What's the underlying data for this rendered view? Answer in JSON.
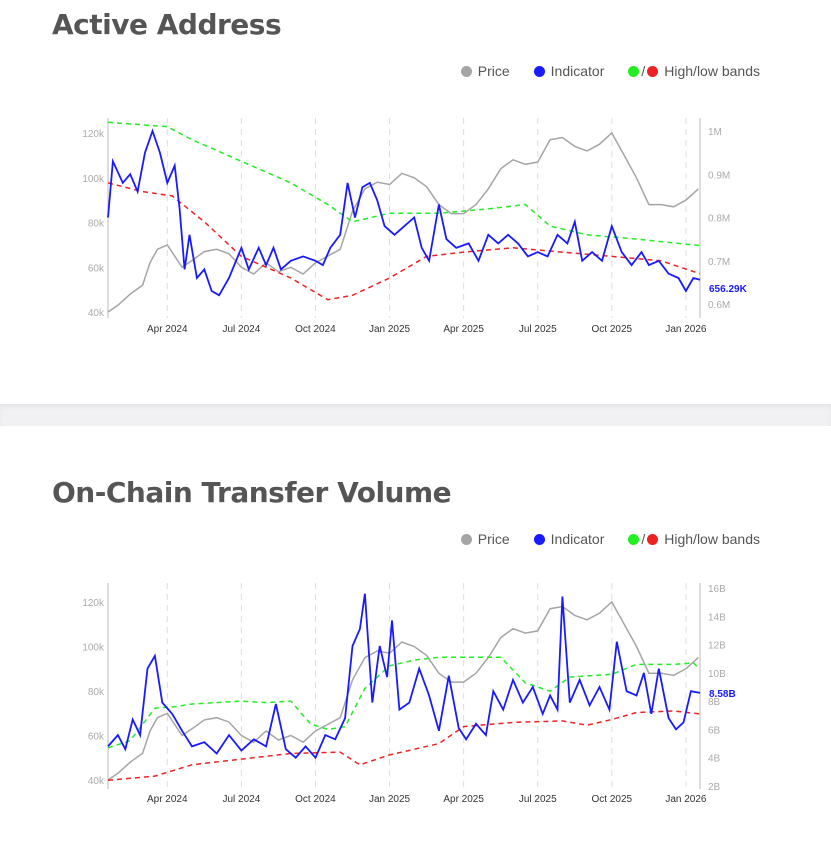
{
  "colors": {
    "price": "#a5a5a5",
    "indicator": "#1a1aff",
    "high": "#22ee22",
    "low": "#ee2222"
  },
  "legend": {
    "price": "Price",
    "indicator": "Indicator",
    "bands": "High/low bands",
    "slash": "/"
  },
  "x_ticks": [
    {
      "m": 3,
      "label": "Apr 2024"
    },
    {
      "m": 6,
      "label": "Jul 2024"
    },
    {
      "m": 9,
      "label": "Oct 2024"
    },
    {
      "m": 12,
      "label": "Jan 2025"
    },
    {
      "m": 15,
      "label": "Apr 2025"
    },
    {
      "m": 18,
      "label": "Jul 2025"
    },
    {
      "m": 21,
      "label": "Oct 2025"
    },
    {
      "m": 24,
      "label": "Jan 2026"
    }
  ],
  "price_series": [
    [
      0.6,
      40
    ],
    [
      1,
      43
    ],
    [
      1.5,
      48
    ],
    [
      2,
      52
    ],
    [
      2.3,
      62
    ],
    [
      2.6,
      68
    ],
    [
      3,
      70
    ],
    [
      3.3,
      65
    ],
    [
      3.6,
      60
    ],
    [
      4,
      63
    ],
    [
      4.5,
      67
    ],
    [
      5,
      68
    ],
    [
      5.5,
      66
    ],
    [
      6,
      60
    ],
    [
      6.5,
      57
    ],
    [
      7,
      62
    ],
    [
      7.5,
      58
    ],
    [
      8,
      60
    ],
    [
      8.5,
      57
    ],
    [
      9,
      62
    ],
    [
      9.5,
      65
    ],
    [
      10,
      68
    ],
    [
      10.5,
      85
    ],
    [
      11,
      95
    ],
    [
      11.5,
      98
    ],
    [
      12,
      97
    ],
    [
      12.5,
      102
    ],
    [
      13,
      100
    ],
    [
      13.5,
      96
    ],
    [
      14,
      88
    ],
    [
      14.5,
      84
    ],
    [
      15,
      84
    ],
    [
      15.5,
      88
    ],
    [
      16,
      95
    ],
    [
      16.5,
      104
    ],
    [
      17,
      108
    ],
    [
      17.5,
      106
    ],
    [
      18,
      107
    ],
    [
      18.5,
      117
    ],
    [
      19,
      118
    ],
    [
      19.5,
      114
    ],
    [
      20,
      112
    ],
    [
      20.5,
      115
    ],
    [
      21,
      120
    ],
    [
      21.5,
      110
    ],
    [
      22,
      100
    ],
    [
      22.5,
      88
    ],
    [
      23,
      88
    ],
    [
      23.5,
      87
    ],
    [
      24,
      90
    ],
    [
      24.5,
      95
    ]
  ],
  "chart_data": [
    {
      "type": "line",
      "title": "Active Address",
      "xlabel": "",
      "ylabel_left": "Price",
      "ylabel_right": "Active Address",
      "x_unit": "months since Jan 2024",
      "xlim": [
        0.6,
        24.57
      ],
      "ylim_left": [
        35,
        125
      ],
      "ylim_right": [
        0.58,
        1.03
      ],
      "left_ticks": [
        {
          "v": 40,
          "label": "40k"
        },
        {
          "v": 60,
          "label": "60k"
        },
        {
          "v": 80,
          "label": "80k"
        },
        {
          "v": 100,
          "label": "100k"
        },
        {
          "v": 120,
          "label": "120k"
        }
      ],
      "right_ticks": [
        {
          "v": 0.6,
          "label": "0.6M"
        },
        {
          "v": 0.7,
          "label": "0.7M"
        },
        {
          "v": 0.8,
          "label": "0.8M"
        },
        {
          "v": 0.9,
          "label": "0.9M"
        },
        {
          "v": 1.0,
          "label": "1M"
        }
      ],
      "last_value_label": "656.29K",
      "series": [
        {
          "name": "Indicator",
          "axis": "right",
          "points": [
            [
              0.6,
              0.8
            ],
            [
              0.8,
              0.93
            ],
            [
              1.2,
              0.88
            ],
            [
              1.5,
              0.9
            ],
            [
              1.8,
              0.86
            ],
            [
              2.1,
              0.95
            ],
            [
              2.4,
              1.0
            ],
            [
              2.7,
              0.95
            ],
            [
              3,
              0.88
            ],
            [
              3.3,
              0.92
            ],
            [
              3.5,
              0.82
            ],
            [
              3.7,
              0.68
            ],
            [
              3.9,
              0.76
            ],
            [
              4.2,
              0.66
            ],
            [
              4.5,
              0.68
            ],
            [
              4.8,
              0.63
            ],
            [
              5.1,
              0.62
            ],
            [
              5.5,
              0.66
            ],
            [
              6,
              0.73
            ],
            [
              6.3,
              0.68
            ],
            [
              6.7,
              0.73
            ],
            [
              7,
              0.69
            ],
            [
              7.3,
              0.73
            ],
            [
              7.6,
              0.68
            ],
            [
              8,
              0.7
            ],
            [
              8.5,
              0.71
            ],
            [
              9,
              0.7
            ],
            [
              9.3,
              0.69
            ],
            [
              9.6,
              0.73
            ],
            [
              10,
              0.76
            ],
            [
              10.3,
              0.88
            ],
            [
              10.6,
              0.8
            ],
            [
              10.9,
              0.87
            ],
            [
              11.2,
              0.88
            ],
            [
              11.5,
              0.84
            ],
            [
              11.8,
              0.78
            ],
            [
              12.2,
              0.76
            ],
            [
              12.6,
              0.78
            ],
            [
              13,
              0.8
            ],
            [
              13.3,
              0.73
            ],
            [
              13.6,
              0.7
            ],
            [
              14,
              0.83
            ],
            [
              14.3,
              0.75
            ],
            [
              14.7,
              0.73
            ],
            [
              15.2,
              0.74
            ],
            [
              15.6,
              0.7
            ],
            [
              16,
              0.76
            ],
            [
              16.4,
              0.74
            ],
            [
              16.8,
              0.76
            ],
            [
              17.2,
              0.74
            ],
            [
              17.6,
              0.71
            ],
            [
              18,
              0.72
            ],
            [
              18.4,
              0.71
            ],
            [
              18.8,
              0.76
            ],
            [
              19.2,
              0.74
            ],
            [
              19.5,
              0.79
            ],
            [
              19.8,
              0.7
            ],
            [
              20.2,
              0.72
            ],
            [
              20.6,
              0.7
            ],
            [
              21,
              0.78
            ],
            [
              21.4,
              0.72
            ],
            [
              21.8,
              0.69
            ],
            [
              22.2,
              0.72
            ],
            [
              22.5,
              0.69
            ],
            [
              22.9,
              0.7
            ],
            [
              23.3,
              0.67
            ],
            [
              23.7,
              0.66
            ],
            [
              24,
              0.63
            ],
            [
              24.3,
              0.66
            ],
            [
              24.57,
              0.656
            ]
          ]
        },
        {
          "name": "High band",
          "axis": "right",
          "points": [
            [
              0.6,
              1.02
            ],
            [
              3,
              1.01
            ],
            [
              4,
              0.98
            ],
            [
              6,
              0.93
            ],
            [
              8,
              0.88
            ],
            [
              9.5,
              0.83
            ],
            [
              10.5,
              0.79
            ],
            [
              12,
              0.81
            ],
            [
              14,
              0.81
            ],
            [
              16,
              0.82
            ],
            [
              17.5,
              0.83
            ],
            [
              18.5,
              0.78
            ],
            [
              20,
              0.76
            ],
            [
              22,
              0.75
            ],
            [
              24.57,
              0.735
            ]
          ]
        },
        {
          "name": "Low band",
          "axis": "right",
          "points": [
            [
              0.6,
              0.88
            ],
            [
              2,
              0.86
            ],
            [
              3.2,
              0.85
            ],
            [
              4.5,
              0.79
            ],
            [
              6,
              0.71
            ],
            [
              8,
              0.66
            ],
            [
              9.5,
              0.61
            ],
            [
              10.5,
              0.62
            ],
            [
              12,
              0.66
            ],
            [
              13.5,
              0.71
            ],
            [
              15,
              0.72
            ],
            [
              17,
              0.73
            ],
            [
              19,
              0.72
            ],
            [
              21,
              0.71
            ],
            [
              23,
              0.7
            ],
            [
              24.57,
              0.67
            ]
          ]
        }
      ]
    },
    {
      "type": "line",
      "title": "On-Chain Transfer Volume",
      "xlabel": "",
      "ylabel_left": "Price",
      "ylabel_right": "Transfer Volume",
      "x_unit": "months since Jan 2024",
      "xlim": [
        0.6,
        24.57
      ],
      "ylim_left": [
        37,
        128
      ],
      "ylim_right": [
        1.6,
        16.5
      ],
      "left_ticks": [
        {
          "v": 40,
          "label": "40k"
        },
        {
          "v": 60,
          "label": "60k"
        },
        {
          "v": 80,
          "label": "80k"
        },
        {
          "v": 100,
          "label": "100k"
        },
        {
          "v": 120,
          "label": "120k"
        }
      ],
      "right_ticks": [
        {
          "v": 2,
          "label": "2B"
        },
        {
          "v": 4,
          "label": "4B"
        },
        {
          "v": 6,
          "label": "6B"
        },
        {
          "v": 8,
          "label": "8B"
        },
        {
          "v": 10,
          "label": "10B"
        },
        {
          "v": 12,
          "label": "12B"
        },
        {
          "v": 14,
          "label": "14B"
        },
        {
          "v": 16,
          "label": "16B"
        }
      ],
      "last_value_label": "8.58B",
      "series": [
        {
          "name": "Indicator",
          "axis": "right",
          "points": [
            [
              0.6,
              4.8
            ],
            [
              1,
              5.6
            ],
            [
              1.3,
              4.6
            ],
            [
              1.6,
              6.7
            ],
            [
              1.9,
              5.6
            ],
            [
              2.2,
              10.3
            ],
            [
              2.5,
              11.2
            ],
            [
              2.8,
              7.9
            ],
            [
              3.2,
              7.1
            ],
            [
              3.6,
              5.9
            ],
            [
              4,
              4.8
            ],
            [
              4.5,
              5.1
            ],
            [
              5,
              4.3
            ],
            [
              5.5,
              5.6
            ],
            [
              6,
              4.5
            ],
            [
              6.5,
              5.3
            ],
            [
              7,
              4.8
            ],
            [
              7.4,
              7.8
            ],
            [
              7.8,
              4.6
            ],
            [
              8.2,
              4.0
            ],
            [
              8.6,
              4.8
            ],
            [
              9,
              4.0
            ],
            [
              9.4,
              5.6
            ],
            [
              9.8,
              5.3
            ],
            [
              10.2,
              6.8
            ],
            [
              10.5,
              11.9
            ],
            [
              10.8,
              13.1
            ],
            [
              11,
              15.6
            ],
            [
              11.3,
              7.9
            ],
            [
              11.6,
              11.9
            ],
            [
              11.9,
              9.7
            ],
            [
              12.1,
              13.7
            ],
            [
              12.4,
              7.4
            ],
            [
              12.8,
              7.9
            ],
            [
              13.2,
              10.3
            ],
            [
              13.6,
              8.4
            ],
            [
              14,
              5.9
            ],
            [
              14.4,
              9.8
            ],
            [
              14.8,
              6.1
            ],
            [
              15.1,
              5.3
            ],
            [
              15.5,
              6.4
            ],
            [
              15.9,
              5.6
            ],
            [
              16.2,
              8.7
            ],
            [
              16.6,
              7.4
            ],
            [
              17,
              9.5
            ],
            [
              17.4,
              7.9
            ],
            [
              17.8,
              9.0
            ],
            [
              18.2,
              7.1
            ],
            [
              18.5,
              8.4
            ],
            [
              18.8,
              7.4
            ],
            [
              19,
              15.4
            ],
            [
              19.3,
              7.9
            ],
            [
              19.7,
              9.5
            ],
            [
              20.1,
              7.7
            ],
            [
              20.5,
              9.0
            ],
            [
              20.9,
              7.4
            ],
            [
              21.2,
              12.2
            ],
            [
              21.6,
              8.7
            ],
            [
              22,
              8.4
            ],
            [
              22.3,
              10.0
            ],
            [
              22.6,
              7.1
            ],
            [
              22.9,
              10.3
            ],
            [
              23.3,
              6.8
            ],
            [
              23.6,
              6.0
            ],
            [
              23.9,
              6.5
            ],
            [
              24.2,
              8.7
            ],
            [
              24.57,
              8.58
            ]
          ]
        },
        {
          "name": "High band",
          "axis": "right",
          "points": [
            [
              0.6,
              4.7
            ],
            [
              1.5,
              5.2
            ],
            [
              2.5,
              7.5
            ],
            [
              3.3,
              7.6
            ],
            [
              4,
              7.8
            ],
            [
              6,
              8.0
            ],
            [
              7,
              7.9
            ],
            [
              8,
              8.0
            ],
            [
              8.8,
              6.4
            ],
            [
              9.5,
              6.0
            ],
            [
              10.2,
              6.2
            ],
            [
              11,
              8.9
            ],
            [
              12,
              10.5
            ],
            [
              13,
              10.9
            ],
            [
              14,
              11.1
            ],
            [
              15,
              11.1
            ],
            [
              16.5,
              11.1
            ],
            [
              17.5,
              9.3
            ],
            [
              18.5,
              8.7
            ],
            [
              19.3,
              9.7
            ],
            [
              21,
              9.9
            ],
            [
              22,
              10.6
            ],
            [
              23.5,
              10.6
            ],
            [
              24.3,
              10.7
            ],
            [
              24.57,
              10.3
            ]
          ]
        },
        {
          "name": "Low band",
          "axis": "right",
          "points": [
            [
              0.6,
              2.4
            ],
            [
              2.5,
              2.7
            ],
            [
              4,
              3.5
            ],
            [
              6,
              3.9
            ],
            [
              8,
              4.3
            ],
            [
              10,
              4.4
            ],
            [
              10.8,
              3.5
            ],
            [
              12,
              4.2
            ],
            [
              14,
              5.0
            ],
            [
              15,
              6.2
            ],
            [
              17,
              6.5
            ],
            [
              19,
              6.6
            ],
            [
              20,
              6.3
            ],
            [
              21,
              6.7
            ],
            [
              22,
              7.2
            ],
            [
              23.5,
              7.3
            ],
            [
              24.57,
              7.1
            ]
          ]
        }
      ]
    }
  ]
}
